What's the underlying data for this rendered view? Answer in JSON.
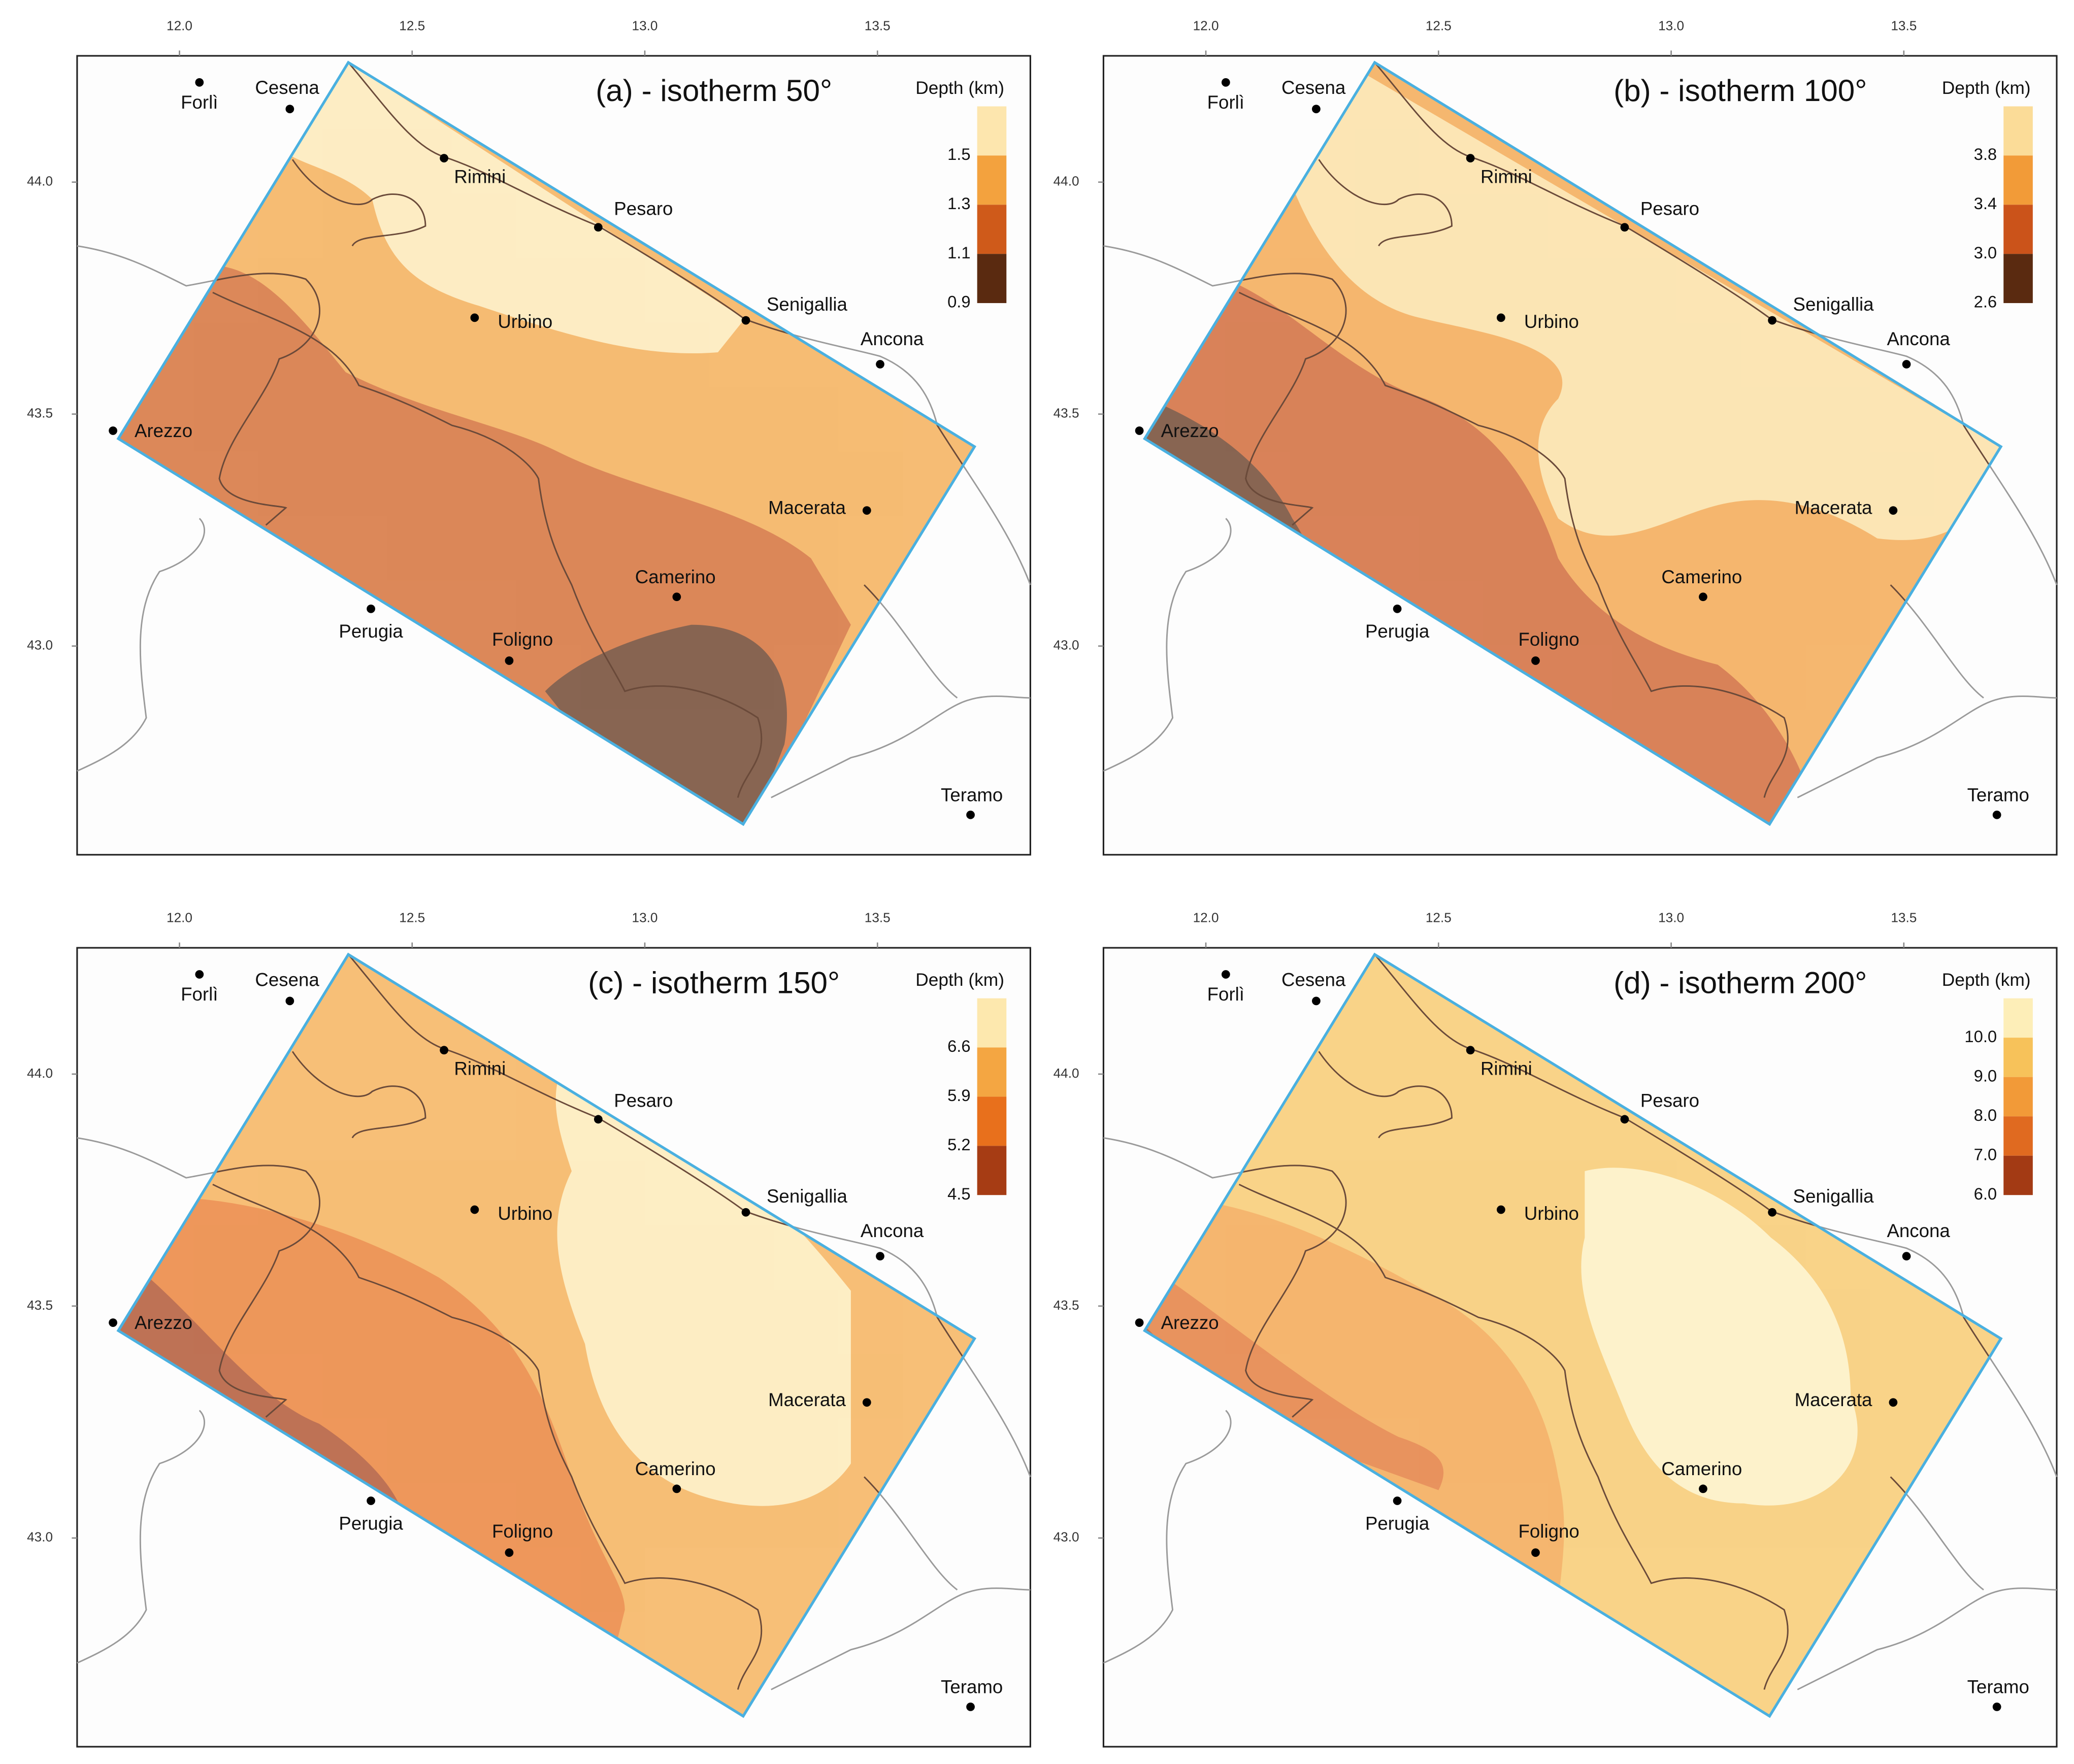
{
  "panels": [
    {
      "title": "(a) - isotherm 50°",
      "legend": {
        "title": "Depth (km)",
        "labels": [
          "1.5",
          "1.3",
          "1.1",
          "0.9"
        ],
        "colors": [
          "#fde6ae",
          "#f3a23e",
          "#cf5a1a",
          "#5a2a10"
        ]
      }
    },
    {
      "title": "(b) - isotherm 100°",
      "legend": {
        "title": "Depth (km)",
        "labels": [
          "3.8",
          "3.4",
          "3.0",
          "2.6"
        ],
        "colors": [
          "#fbdc98",
          "#f29b38",
          "#cb531a",
          "#5a2a10"
        ]
      }
    },
    {
      "title": "(c) - isotherm 150°",
      "legend": {
        "title": "Depth (km)",
        "labels": [
          "6.6",
          "5.9",
          "5.2",
          "4.5"
        ],
        "colors": [
          "#fde8ae",
          "#f4a642",
          "#e8701c",
          "#a63c14"
        ]
      }
    },
    {
      "title": "(d) - isotherm 200°",
      "legend": {
        "title": "Depth (km)",
        "labels": [
          "10.0",
          "9.0",
          "8.0",
          "7.0",
          "6.0"
        ],
        "colors": [
          "#fdeeb8",
          "#f7c25a",
          "#f29a38",
          "#e06a20",
          "#a33a14"
        ]
      }
    }
  ],
  "x_axis": {
    "ticks": [
      {
        "value": 12,
        "label": "12.0"
      },
      {
        "value": 12.5,
        "label": "12.5"
      },
      {
        "value": 13,
        "label": "13.0"
      },
      {
        "value": 13.5,
        "label": "13.5"
      }
    ]
  },
  "y_axis": {
    "ticks": [
      {
        "value": 44,
        "label": "44.0"
      },
      {
        "value": 43.5,
        "label": "43.5"
      },
      {
        "value": 43,
        "label": "43.0"
      }
    ]
  },
  "cities": [
    "Forlì",
    "Cesena",
    "Rimini",
    "Pesaro",
    "Senigallia",
    "Urbino",
    "Ancona",
    "Arezzo",
    "Macerata",
    "Camerino",
    "Perugia",
    "Foligno",
    "Teramo"
  ]
}
